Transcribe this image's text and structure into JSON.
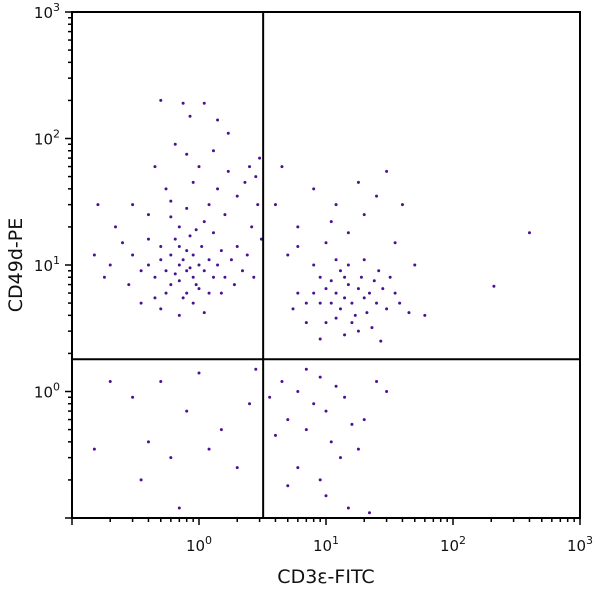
{
  "chart_data": {
    "type": "scatter",
    "xlabel": "CD3ε-FITC",
    "ylabel": "CD49d-PE",
    "xscale": "log",
    "yscale": "log",
    "xlim": [
      0.1,
      1000
    ],
    "ylim": [
      0.1,
      1000
    ],
    "x_tick_labels": [
      {
        "value": 1,
        "base": "10",
        "exp": "0"
      },
      {
        "value": 10,
        "base": "10",
        "exp": "1"
      },
      {
        "value": 100,
        "base": "10",
        "exp": "2"
      },
      {
        "value": 1000,
        "base": "10",
        "exp": "3"
      }
    ],
    "y_tick_labels": [
      {
        "value": 1,
        "base": "10",
        "exp": "0"
      },
      {
        "value": 10,
        "base": "10",
        "exp": "1"
      },
      {
        "value": 100,
        "base": "10",
        "exp": "2"
      },
      {
        "value": 1000,
        "base": "10",
        "exp": "3"
      }
    ],
    "quadrant_gates": {
      "x": 3.2,
      "y": 1.8
    },
    "grid": false,
    "point_color": "#4a1190",
    "points": [
      [
        0.8,
        9
      ],
      [
        0.7,
        10
      ],
      [
        0.9,
        8
      ],
      [
        0.75,
        11
      ],
      [
        0.85,
        9.5
      ],
      [
        0.65,
        8.5
      ],
      [
        1.0,
        10
      ],
      [
        0.6,
        12
      ],
      [
        0.95,
        7
      ],
      [
        0.7,
        7.5
      ],
      [
        1.1,
        9
      ],
      [
        0.55,
        9
      ],
      [
        0.8,
        13
      ],
      [
        0.9,
        12
      ],
      [
        0.7,
        14
      ],
      [
        0.5,
        11
      ],
      [
        1.2,
        11
      ],
      [
        0.6,
        7
      ],
      [
        0.8,
        6
      ],
      [
        1.0,
        6.5
      ],
      [
        0.45,
        8
      ],
      [
        1.3,
        8
      ],
      [
        0.65,
        16
      ],
      [
        0.85,
        17
      ],
      [
        1.05,
        14
      ],
      [
        0.4,
        10
      ],
      [
        1.4,
        10
      ],
      [
        0.75,
        5.5
      ],
      [
        0.55,
        6
      ],
      [
        1.2,
        6
      ],
      [
        0.5,
        14
      ],
      [
        0.95,
        19
      ],
      [
        1.5,
        13
      ],
      [
        0.35,
        9
      ],
      [
        1.6,
        8
      ],
      [
        0.7,
        20
      ],
      [
        1.1,
        22
      ],
      [
        0.6,
        24
      ],
      [
        1.3,
        18
      ],
      [
        0.9,
        5
      ],
      [
        0.45,
        5.5
      ],
      [
        1.5,
        6
      ],
      [
        0.3,
        12
      ],
      [
        1.8,
        11
      ],
      [
        0.4,
        16
      ],
      [
        2.0,
        14
      ],
      [
        0.8,
        28
      ],
      [
        1.2,
        30
      ],
      [
        0.6,
        32
      ],
      [
        1.6,
        25
      ],
      [
        2.2,
        9
      ],
      [
        0.28,
        7
      ],
      [
        1.9,
        7
      ],
      [
        0.5,
        4.5
      ],
      [
        1.1,
        4.2
      ],
      [
        0.7,
        4
      ],
      [
        0.35,
        5
      ],
      [
        2.4,
        12
      ],
      [
        2.6,
        20
      ],
      [
        2.0,
        35
      ],
      [
        1.4,
        40
      ],
      [
        0.9,
        45
      ],
      [
        2.8,
        50
      ],
      [
        2.5,
        60
      ],
      [
        3.0,
        70
      ],
      [
        1.7,
        55
      ],
      [
        0.55,
        40
      ],
      [
        0.4,
        25
      ],
      [
        0.25,
        15
      ],
      [
        0.2,
        10
      ],
      [
        0.18,
        8
      ],
      [
        0.15,
        12
      ],
      [
        0.22,
        20
      ],
      [
        1.0,
        60
      ],
      [
        1.3,
        80
      ],
      [
        0.65,
        90
      ],
      [
        0.5,
        200
      ],
      [
        0.75,
        190
      ],
      [
        1.1,
        190
      ],
      [
        0.85,
        150
      ],
      [
        1.4,
        140
      ],
      [
        1.7,
        110
      ],
      [
        0.8,
        75
      ],
      [
        2.3,
        45
      ],
      [
        2.9,
        30
      ],
      [
        3.1,
        16
      ],
      [
        0.3,
        30
      ],
      [
        0.45,
        60
      ],
      [
        0.16,
        30
      ],
      [
        2.7,
        8
      ],
      [
        14,
        5.5
      ],
      [
        12,
        6
      ],
      [
        16,
        5
      ],
      [
        13,
        4.5
      ],
      [
        18,
        6.5
      ],
      [
        11,
        5
      ],
      [
        15,
        7
      ],
      [
        20,
        5.5
      ],
      [
        10,
        6.5
      ],
      [
        17,
        4
      ],
      [
        22,
        6
      ],
      [
        9,
        5
      ],
      [
        14,
        8
      ],
      [
        12,
        3.8
      ],
      [
        25,
        5
      ],
      [
        19,
        8
      ],
      [
        8,
        6
      ],
      [
        16,
        3.5
      ],
      [
        21,
        4.2
      ],
      [
        13,
        9
      ],
      [
        28,
        6.5
      ],
      [
        11,
        7.5
      ],
      [
        24,
        7.5
      ],
      [
        7,
        5
      ],
      [
        30,
        4.5
      ],
      [
        10,
        3.5
      ],
      [
        18,
        3
      ],
      [
        15,
        10
      ],
      [
        9,
        8
      ],
      [
        26,
        9
      ],
      [
        6,
        6
      ],
      [
        35,
        6
      ],
      [
        12,
        11
      ],
      [
        20,
        11
      ],
      [
        8,
        10
      ],
      [
        5.5,
        4.5
      ],
      [
        32,
        8
      ],
      [
        23,
        3.2
      ],
      [
        14,
        2.8
      ],
      [
        7,
        3.5
      ],
      [
        10,
        15
      ],
      [
        15,
        18
      ],
      [
        6,
        20
      ],
      [
        20,
        25
      ],
      [
        12,
        30
      ],
      [
        8,
        40
      ],
      [
        25,
        35
      ],
      [
        18,
        45
      ],
      [
        30,
        55
      ],
      [
        5,
        12
      ],
      [
        4,
        30
      ],
      [
        35,
        15
      ],
      [
        40,
        30
      ],
      [
        4.5,
        60
      ],
      [
        38,
        5
      ],
      [
        45,
        4.2
      ],
      [
        9,
        2.6
      ],
      [
        27,
        2.5
      ],
      [
        6,
        14
      ],
      [
        11,
        22
      ],
      [
        7,
        1.5
      ],
      [
        9,
        1.3
      ],
      [
        12,
        1.1
      ],
      [
        6,
        1.0
      ],
      [
        14,
        0.9
      ],
      [
        8,
        0.8
      ],
      [
        10,
        0.7
      ],
      [
        5,
        0.6
      ],
      [
        16,
        0.55
      ],
      [
        7,
        0.5
      ],
      [
        11,
        0.4
      ],
      [
        4,
        0.45
      ],
      [
        13,
        0.3
      ],
      [
        6,
        0.25
      ],
      [
        18,
        0.35
      ],
      [
        9,
        0.2
      ],
      [
        20,
        0.6
      ],
      [
        25,
        1.2
      ],
      [
        30,
        1.0
      ],
      [
        4.5,
        1.2
      ],
      [
        10,
        0.15
      ],
      [
        15,
        0.12
      ],
      [
        22,
        0.11
      ],
      [
        5,
        0.18
      ],
      [
        3.6,
        0.9
      ],
      [
        1.0,
        1.4
      ],
      [
        0.5,
        1.2
      ],
      [
        0.3,
        0.9
      ],
      [
        0.2,
        1.2
      ],
      [
        0.8,
        0.7
      ],
      [
        1.5,
        0.5
      ],
      [
        2.5,
        0.8
      ],
      [
        0.4,
        0.4
      ],
      [
        0.6,
        0.3
      ],
      [
        1.2,
        0.35
      ],
      [
        2.0,
        0.25
      ],
      [
        0.35,
        0.2
      ],
      [
        0.7,
        0.12
      ],
      [
        0.15,
        0.35
      ],
      [
        2.8,
        1.5
      ],
      [
        210,
        6.8
      ],
      [
        400,
        18
      ],
      [
        50,
        10
      ],
      [
        60,
        4.0
      ]
    ]
  }
}
